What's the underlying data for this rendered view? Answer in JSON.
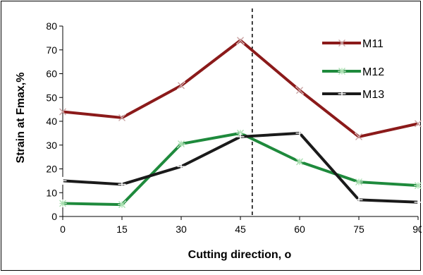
{
  "chart_data": {
    "type": "line",
    "xlabel": "Cutting direction, o",
    "ylabel": "Strain at Fmax,%",
    "x": [
      0,
      15,
      30,
      45,
      60,
      75,
      90
    ],
    "xticks": [
      "0",
      "15",
      "30",
      "45",
      "60",
      "75",
      "90"
    ],
    "xlim": [
      0,
      90
    ],
    "ylim": [
      0,
      80
    ],
    "yticks": [
      "0",
      "10",
      "20",
      "30",
      "40",
      "50",
      "60",
      "70",
      "80"
    ],
    "grid": false,
    "legend_position": "top-right",
    "reference_line": {
      "x": 48,
      "style": "dashed"
    },
    "series": [
      {
        "name": "M11",
        "color": "#8b1a1a",
        "marker": "x",
        "values": [
          44,
          41.5,
          55,
          74,
          53,
          33.5,
          39
        ]
      },
      {
        "name": "M12",
        "color": "#1e8a3c",
        "marker": "asterisk",
        "values": [
          5.5,
          5,
          30.5,
          35,
          23,
          14.5,
          13
        ]
      },
      {
        "name": "M13",
        "color": "#1a1a1a",
        "marker": "plus",
        "values": [
          15,
          13.5,
          21,
          33.5,
          35,
          7,
          6
        ]
      }
    ]
  }
}
